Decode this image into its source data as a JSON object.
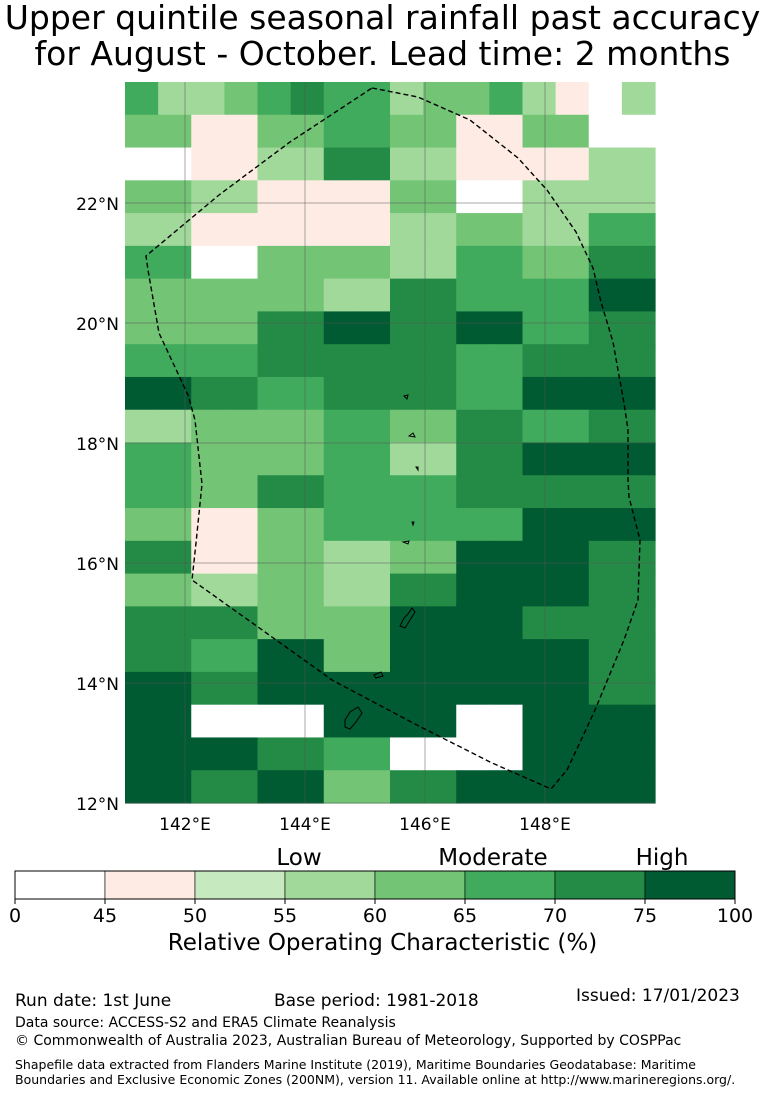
{
  "title_line1": "Upper quintile seasonal rainfall past accuracy",
  "title_line2": "for August - October. Lead time: 2 months",
  "map": {
    "lat_ticks": [
      {
        "value": 22,
        "label": "22°N"
      },
      {
        "value": 20,
        "label": "20°N"
      },
      {
        "value": 18,
        "label": "18°N"
      },
      {
        "value": 16,
        "label": "16°N"
      },
      {
        "value": 14,
        "label": "14°N"
      },
      {
        "value": 12,
        "label": "12°N"
      }
    ],
    "lon_ticks": [
      {
        "value": 142,
        "label": "142°E"
      },
      {
        "value": 144,
        "label": "144°E"
      },
      {
        "value": 146,
        "label": "146°E"
      },
      {
        "value": 148,
        "label": "148°E"
      }
    ],
    "lon_range": [
      141,
      149.8
    ],
    "lat_range": [
      12,
      23.9
    ],
    "grid_columns_note": "",
    "rows": [
      [
        5,
        3,
        3,
        4,
        5,
        6,
        5,
        5,
        3,
        4,
        4,
        5,
        3,
        1,
        0,
        3
      ],
      [
        4,
        4,
        1,
        1,
        4,
        4,
        5,
        5,
        4,
        4,
        1,
        1,
        4,
        4,
        0,
        0
      ],
      [
        0,
        0,
        1,
        1,
        3,
        3,
        6,
        6,
        3,
        3,
        1,
        1,
        1,
        1,
        3,
        3
      ],
      [
        4,
        4,
        3,
        3,
        1,
        1,
        1,
        1,
        4,
        4,
        0,
        0,
        3,
        3,
        3,
        3
      ],
      [
        3,
        3,
        1,
        1,
        1,
        1,
        1,
        1,
        3,
        3,
        4,
        4,
        3,
        3,
        5,
        5
      ],
      [
        5,
        5,
        0,
        0,
        4,
        4,
        4,
        4,
        3,
        3,
        5,
        5,
        4,
        4,
        6,
        6
      ],
      [
        4,
        4,
        4,
        4,
        4,
        4,
        3,
        3,
        6,
        6,
        5,
        5,
        5,
        5,
        7,
        7
      ],
      [
        4,
        4,
        4,
        4,
        6,
        6,
        7,
        7,
        6,
        6,
        7,
        7,
        5,
        5,
        6,
        6
      ],
      [
        5,
        5,
        5,
        5,
        6,
        6,
        6,
        6,
        6,
        6,
        5,
        5,
        6,
        6,
        6,
        6
      ],
      [
        7,
        7,
        6,
        6,
        5,
        5,
        6,
        6,
        6,
        6,
        5,
        5,
        7,
        7,
        7,
        7
      ],
      [
        3,
        3,
        4,
        4,
        4,
        4,
        5,
        5,
        4,
        4,
        6,
        6,
        5,
        5,
        6,
        6
      ],
      [
        5,
        5,
        4,
        4,
        4,
        4,
        5,
        5,
        3,
        3,
        6,
        6,
        7,
        7,
        7,
        7
      ],
      [
        5,
        5,
        4,
        4,
        6,
        6,
        5,
        5,
        5,
        5,
        6,
        6,
        6,
        6,
        6,
        6
      ],
      [
        4,
        4,
        1,
        1,
        4,
        4,
        5,
        5,
        5,
        5,
        5,
        5,
        7,
        7,
        7,
        7
      ],
      [
        6,
        6,
        1,
        1,
        4,
        4,
        3,
        3,
        4,
        4,
        7,
        7,
        7,
        7,
        6,
        6
      ],
      [
        4,
        4,
        3,
        3,
        4,
        4,
        3,
        3,
        6,
        6,
        7,
        7,
        7,
        7,
        6,
        6
      ],
      [
        6,
        6,
        6,
        6,
        4,
        4,
        4,
        4,
        7,
        7,
        7,
        7,
        6,
        6,
        6,
        6
      ],
      [
        6,
        6,
        5,
        5,
        7,
        7,
        4,
        4,
        7,
        7,
        7,
        7,
        7,
        7,
        6,
        6
      ],
      [
        7,
        7,
        6,
        6,
        7,
        7,
        7,
        7,
        7,
        7,
        7,
        7,
        7,
        7,
        6,
        6
      ],
      [
        7,
        7,
        8,
        8,
        8,
        8,
        7,
        7,
        7,
        7,
        8,
        8,
        7,
        7,
        7,
        7
      ],
      [
        7,
        7,
        7,
        7,
        6,
        6,
        5,
        5,
        8,
        8,
        8,
        8,
        7,
        7,
        7,
        7
      ],
      [
        7,
        7,
        6,
        6,
        7,
        7,
        4,
        4,
        6,
        6,
        7,
        7,
        7,
        7,
        7,
        7
      ]
    ]
  },
  "colorbar": {
    "category_labels": [
      "Low",
      "Moderate",
      "High"
    ],
    "tick_labels": [
      "0",
      "45",
      "50",
      "55",
      "60",
      "65",
      "70",
      "75",
      "100"
    ],
    "colors": [
      "#ffffff",
      "#feece4",
      "#c7e9c0",
      "#a1d99b",
      "#74c476",
      "#41ab5d",
      "#238b45",
      "#005a32"
    ],
    "unit_label": "Relative Operating Characteristic (%)"
  },
  "footer": {
    "run_date": "Run date: 1st June",
    "base_period": "Base period: 1981-2018",
    "issued": "Issued: 17/01/2023",
    "data_source": "Data source: ACCESS-S2 and ERA5 Climate Reanalysis",
    "copyright": "© Commonwealth of Australia 2023, Australian Bureau of Meteorology, Supported by COSPPac",
    "shapefile": "Shapefile data extracted from Flanders Marine Institute (2019), Maritime Boundaries Geodatabase: Maritime Boundaries and Exclusive Economic Zones (200NM), version 11. Available online at http://www.marineregions.org/."
  }
}
